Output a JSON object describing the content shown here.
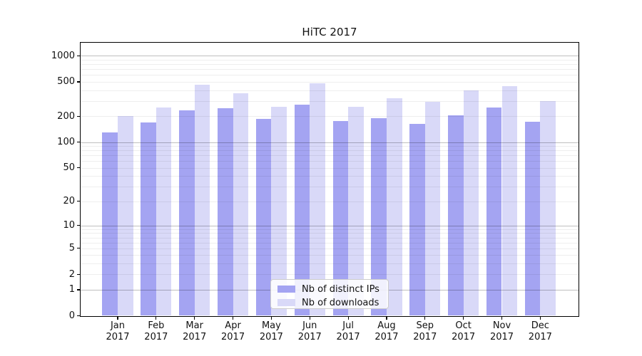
{
  "title": "HiTC 2017",
  "chart_data": {
    "type": "bar",
    "title": "HiTC 2017",
    "categories": [
      "Jan 2017",
      "Feb 2017",
      "Mar 2017",
      "Apr 2017",
      "May 2017",
      "Jun 2017",
      "Jul 2017",
      "Aug 2017",
      "Sep 2017",
      "Oct 2017",
      "Nov 2017",
      "Dec 2017"
    ],
    "x_tick_months": [
      "Jan",
      "Feb",
      "Mar",
      "Apr",
      "May",
      "Jun",
      "Jul",
      "Aug",
      "Sep",
      "Oct",
      "Nov",
      "Dec"
    ],
    "x_tick_year": "2017",
    "series": [
      {
        "name": "Nb of distinct IPs",
        "color": "#a4a4f2",
        "values": [
          130,
          170,
          235,
          246,
          185,
          270,
          176,
          188,
          164,
          206,
          251,
          171
        ]
      },
      {
        "name": "Nb of downloads",
        "color": "#d9d9f8",
        "values": [
          202,
          250,
          464,
          370,
          255,
          479,
          258,
          321,
          293,
          399,
          449,
          300
        ]
      }
    ],
    "y_ticks": [
      0,
      1,
      2,
      5,
      10,
      20,
      50,
      100,
      200,
      500,
      1000
    ],
    "y_scale": "log10(value+1)",
    "ylim": [
      0,
      1410
    ],
    "xlabel": "",
    "ylabel": "",
    "grid": "horizontal, log minor gridlines, drawn above bars",
    "legend_position": "lower-center"
  },
  "legend": {
    "items": [
      "Nb of distinct IPs",
      "Nb of downloads"
    ]
  }
}
